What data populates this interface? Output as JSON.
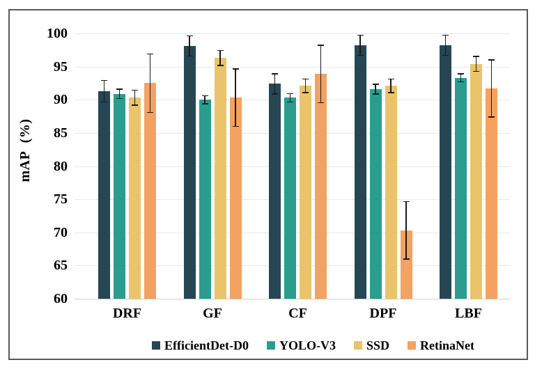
{
  "chart_data": {
    "type": "bar",
    "title": "",
    "xlabel": "",
    "ylabel": "mAP (%)",
    "ylim": [
      60,
      100
    ],
    "yticks": [
      60,
      65,
      70,
      75,
      80,
      85,
      90,
      95,
      100
    ],
    "grid": true,
    "legend_position": "bottom",
    "categories": [
      "DRF",
      "GF",
      "CF",
      "DPF",
      "LBF"
    ],
    "series": [
      {
        "name": "EfficientDet-D0",
        "color": "#264653",
        "values": [
          91.3,
          98.1,
          92.4,
          98.2,
          98.2
        ],
        "errors": [
          1.7,
          1.6,
          1.6,
          1.6,
          1.6
        ]
      },
      {
        "name": "YOLO-V3",
        "color": "#2a9d8f",
        "values": [
          90.9,
          90.0,
          90.3,
          91.6,
          93.3
        ],
        "errors": [
          0.8,
          0.7,
          0.7,
          0.8,
          0.7
        ]
      },
      {
        "name": "SSD",
        "color": "#e9c46a",
        "values": [
          90.3,
          96.3,
          92.1,
          92.1,
          95.4
        ],
        "errors": [
          1.2,
          1.2,
          1.1,
          1.1,
          1.2
        ]
      },
      {
        "name": "RetinaNet",
        "color": "#f4a261",
        "values": [
          92.5,
          90.3,
          93.9,
          70.3,
          91.7
        ],
        "errors": [
          4.5,
          4.4,
          4.4,
          4.4,
          4.4
        ]
      }
    ],
    "frame_color": "#595959",
    "gridline_color": "#e8e8e8",
    "errorbar_color": "#1a1a1a"
  }
}
